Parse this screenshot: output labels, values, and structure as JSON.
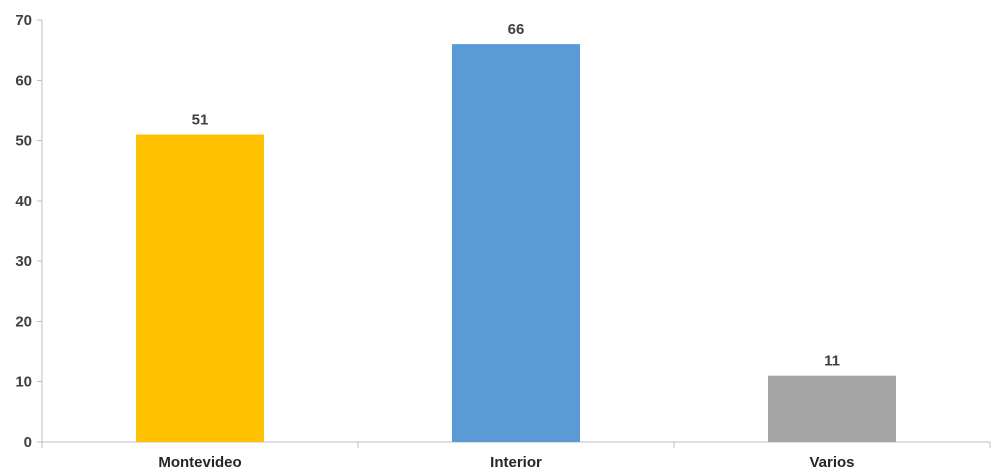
{
  "chart_data": {
    "type": "bar",
    "categories": [
      "Montevideo",
      "Interior",
      "Varios"
    ],
    "values": [
      51,
      66,
      11
    ],
    "colors": [
      "#ffc000",
      "#5b9bd5",
      "#a5a5a5"
    ],
    "ylim": [
      0,
      70
    ],
    "yticks": [
      0,
      10,
      20,
      30,
      40,
      50,
      60,
      70
    ],
    "grid": false,
    "data_labels": true,
    "legend": "none"
  }
}
